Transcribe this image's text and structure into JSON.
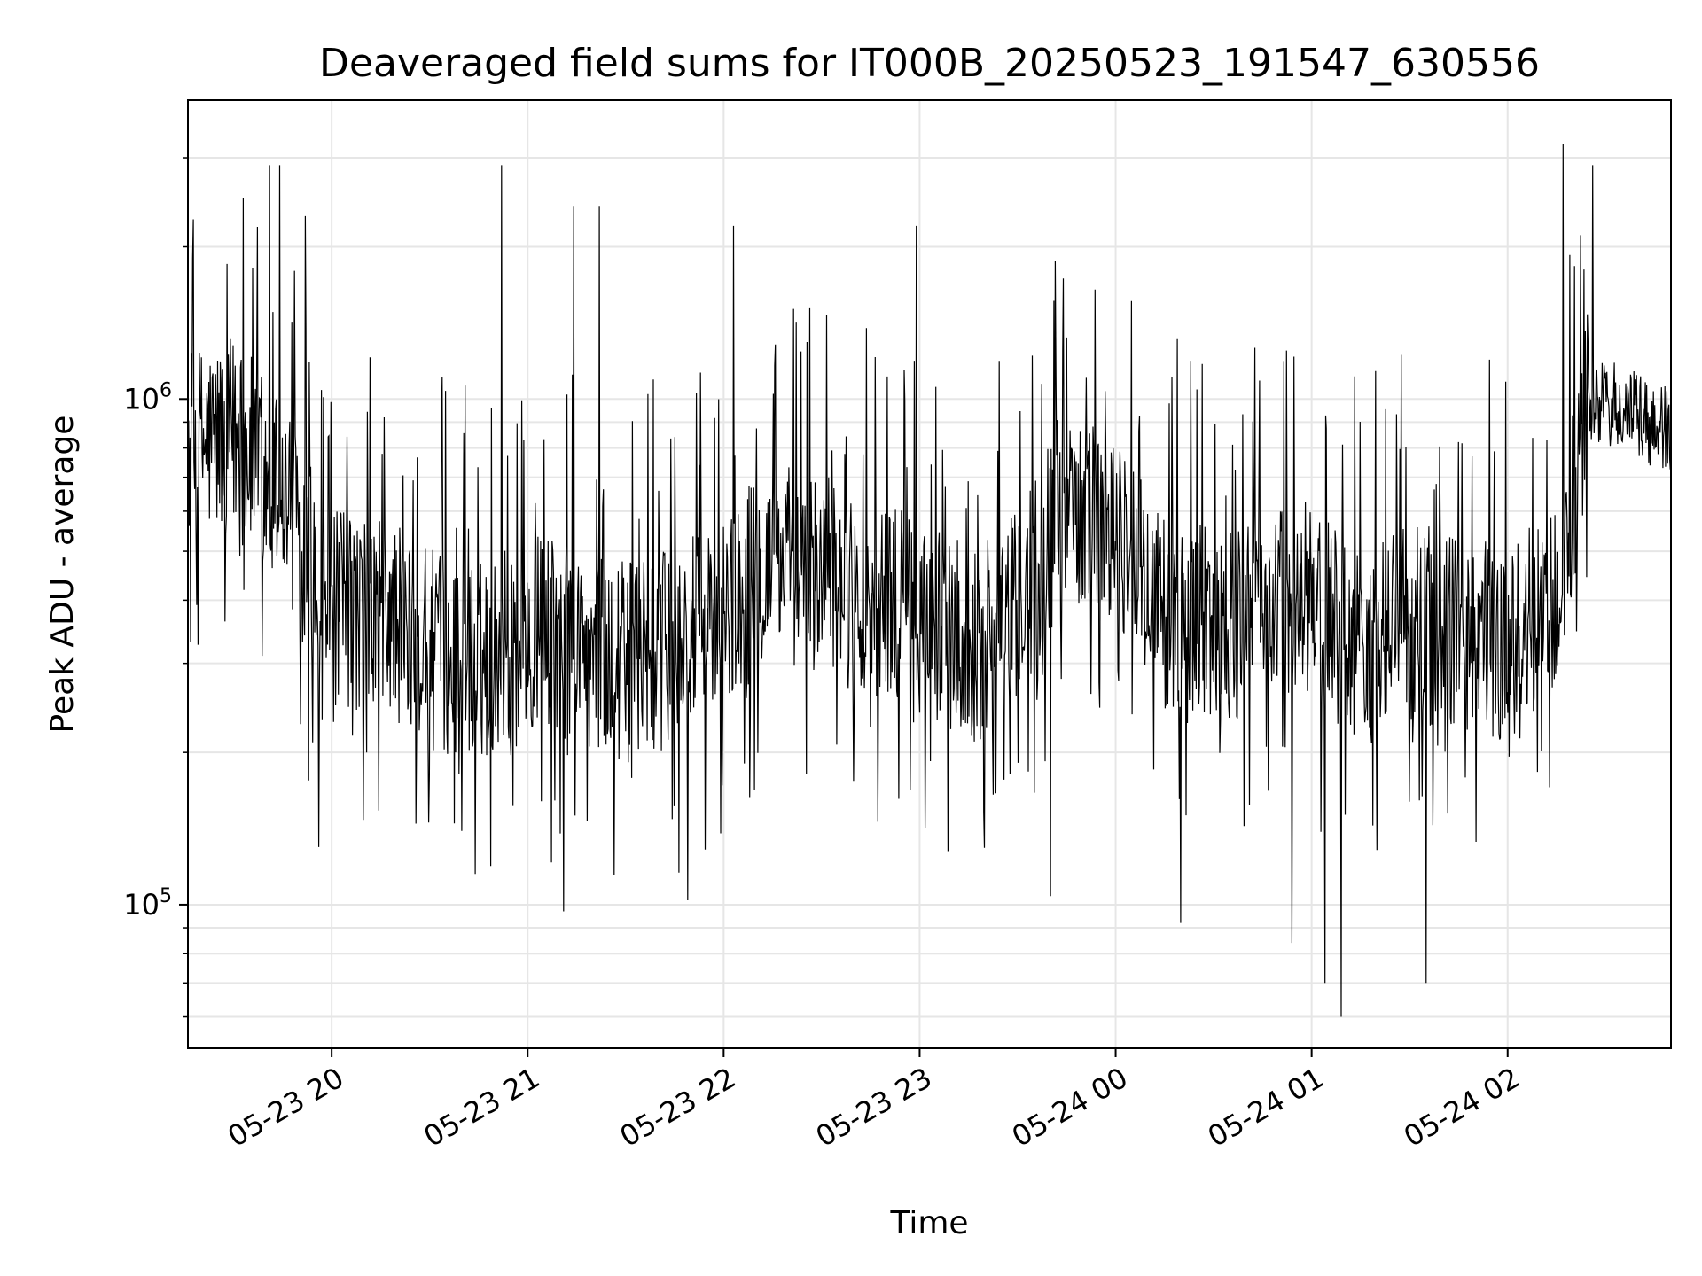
{
  "chart_data": {
    "type": "line",
    "title": "Deaveraged field sums for IT000B_20250523_191547_630556",
    "xlabel": "Time",
    "ylabel": "Peak ADU - average",
    "yscale": "log",
    "ylim": [
      52000,
      3900000
    ],
    "xlim": [
      "2025-05-23 19:16",
      "2025-05-24 02:50"
    ],
    "grid": true,
    "line_color": "#000000",
    "x_ticks": [
      {
        "value": "2025-05-23 20:00",
        "label": "05-23 20"
      },
      {
        "value": "2025-05-23 21:00",
        "label": "05-23 21"
      },
      {
        "value": "2025-05-23 22:00",
        "label": "05-23 22"
      },
      {
        "value": "2025-05-23 23:00",
        "label": "05-23 23"
      },
      {
        "value": "2025-05-24 00:00",
        "label": "05-24 00"
      },
      {
        "value": "2025-05-24 01:00",
        "label": "05-24 01"
      },
      {
        "value": "2025-05-24 02:00",
        "label": "05-24 02"
      }
    ],
    "y_ticks": [
      {
        "value": 100000,
        "base": "10",
        "exp": "5"
      },
      {
        "value": 1000000,
        "base": "10",
        "exp": "6"
      }
    ],
    "series": [
      {
        "x_start": "2025-05-23 19:16",
        "x_end": "2025-05-24 02:50",
        "envelope_x": [
          "2025-05-23 19:16",
          "2025-05-23 19:30",
          "2025-05-23 19:45",
          "2025-05-23 20:00",
          "2025-05-23 20:15",
          "2025-05-23 20:30",
          "2025-05-23 20:45",
          "2025-05-23 21:00",
          "2025-05-23 21:15",
          "2025-05-23 21:30",
          "2025-05-23 21:45",
          "2025-05-23 22:00",
          "2025-05-23 22:15",
          "2025-05-23 22:30",
          "2025-05-23 22:45",
          "2025-05-23 23:00",
          "2025-05-23 23:15",
          "2025-05-23 23:30",
          "2025-05-23 23:45",
          "2025-05-24 00:00",
          "2025-05-24 00:15",
          "2025-05-24 00:30",
          "2025-05-24 00:45",
          "2025-05-24 01:00",
          "2025-05-24 01:15",
          "2025-05-24 01:30",
          "2025-05-24 01:45",
          "2025-05-24 02:00",
          "2025-05-24 02:15",
          "2025-05-24 02:25",
          "2025-05-24 02:35",
          "2025-05-24 02:50"
        ],
        "median_y": [
          800000,
          850000,
          650000,
          380000,
          380000,
          320000,
          300000,
          350000,
          330000,
          300000,
          320000,
          380000,
          480000,
          450000,
          400000,
          380000,
          320000,
          380000,
          650000,
          550000,
          380000,
          350000,
          400000,
          400000,
          320000,
          360000,
          350000,
          330000,
          380000,
          1000000,
          950000,
          850000
        ],
        "spike_highs": [
          {
            "x": "2025-05-23 19:33",
            "y": 2500000
          },
          {
            "x": "2025-05-23 19:41",
            "y": 2900000
          },
          {
            "x": "2025-05-23 19:44",
            "y": 2900000
          },
          {
            "x": "2025-05-23 19:52",
            "y": 2300000
          },
          {
            "x": "2025-05-23 20:52",
            "y": 2900000
          },
          {
            "x": "2025-05-23 21:14",
            "y": 2400000
          },
          {
            "x": "2025-05-23 21:22",
            "y": 2400000
          },
          {
            "x": "2025-05-23 22:03",
            "y": 2200000
          },
          {
            "x": "2025-05-23 22:59",
            "y": 2200000
          },
          {
            "x": "2025-05-24 02:17",
            "y": 3200000
          },
          {
            "x": "2025-05-24 02:26",
            "y": 2900000
          }
        ],
        "spike_lows": [
          {
            "x": "2025-05-23 19:56",
            "y": 130000
          },
          {
            "x": "2025-05-23 20:44",
            "y": 115000
          },
          {
            "x": "2025-05-23 21:11",
            "y": 97000
          },
          {
            "x": "2025-05-23 21:49",
            "y": 102000
          },
          {
            "x": "2025-05-23 23:40",
            "y": 104000
          },
          {
            "x": "2025-05-24 00:20",
            "y": 92000
          },
          {
            "x": "2025-05-24 00:54",
            "y": 84000
          },
          {
            "x": "2025-05-24 01:04",
            "y": 70000
          },
          {
            "x": "2025-05-24 01:09",
            "y": 60000
          },
          {
            "x": "2025-05-24 01:35",
            "y": 70000
          }
        ]
      }
    ]
  }
}
